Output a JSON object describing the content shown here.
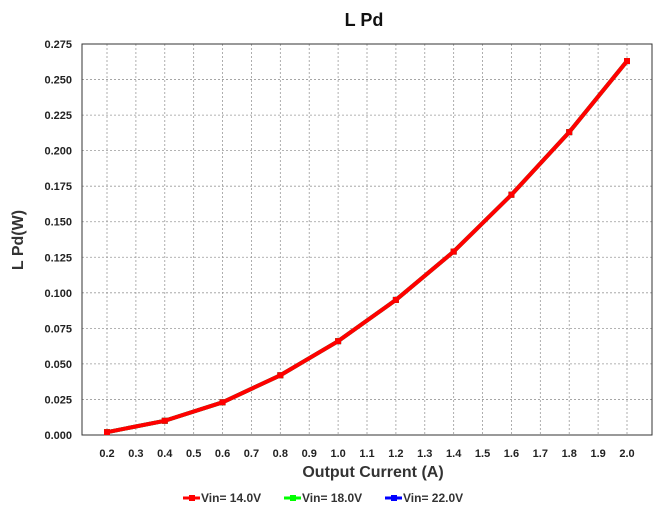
{
  "chart_data": {
    "type": "line",
    "title": "L Pd",
    "xlabel": "Output Current (A)",
    "ylabel": "L Pd(W)",
    "x_ticks": [
      "0.2",
      "0.3",
      "0.4",
      "0.5",
      "0.6",
      "0.7",
      "0.8",
      "0.9",
      "1.0",
      "1.1",
      "1.2",
      "1.3",
      "1.4",
      "1.5",
      "1.6",
      "1.7",
      "1.8",
      "1.9",
      "2.0"
    ],
    "y_ticks": [
      "0.000",
      "0.025",
      "0.050",
      "0.075",
      "0.100",
      "0.125",
      "0.150",
      "0.175",
      "0.200",
      "0.225",
      "0.250",
      "0.275"
    ],
    "xlim": [
      0.2,
      2.0
    ],
    "ylim": [
      0,
      0.275
    ],
    "grid": true,
    "legend_position": "bottom",
    "x": [
      0.2,
      0.4,
      0.6,
      0.8,
      1.0,
      1.2,
      1.4,
      1.6,
      1.8,
      2.0
    ],
    "series": [
      {
        "name": "Vin= 14.0V",
        "color": "#ff0000",
        "values": [
          0.002,
          0.01,
          0.023,
          0.042,
          0.066,
          0.095,
          0.129,
          0.169,
          0.213,
          0.263
        ]
      },
      {
        "name": "Vin= 18.0V",
        "color": "#00ff00",
        "values": [
          0.002,
          0.01,
          0.023,
          0.042,
          0.066,
          0.095,
          0.129,
          0.169,
          0.213,
          0.263
        ]
      },
      {
        "name": "Vin= 22.0V",
        "color": "#0000ff",
        "values": [
          0.002,
          0.01,
          0.023,
          0.042,
          0.066,
          0.095,
          0.129,
          0.169,
          0.213,
          0.263
        ]
      }
    ]
  }
}
